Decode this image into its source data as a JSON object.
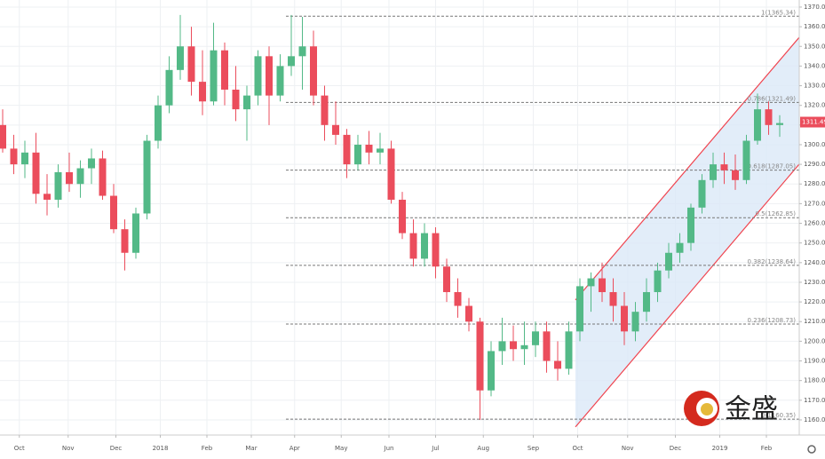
{
  "chart_data": {
    "type": "candlestick",
    "xlim": [
      -0.24,
      71.76
    ],
    "ylim": [
      1152.3,
      1373.6
    ],
    "yticks": [
      {
        "value": 1160,
        "label": "1160.00"
      },
      {
        "value": 1170,
        "label": "1170.00"
      },
      {
        "value": 1180,
        "label": "1180.00"
      },
      {
        "value": 1190,
        "label": "1190.00"
      },
      {
        "value": 1200,
        "label": "1200.00"
      },
      {
        "value": 1210,
        "label": "1210.00"
      },
      {
        "value": 1220,
        "label": "1220.00"
      },
      {
        "value": 1230,
        "label": "1230.00"
      },
      {
        "value": 1240,
        "label": "1240.00"
      },
      {
        "value": 1250,
        "label": "1250.00"
      },
      {
        "value": 1260,
        "label": "1260.00"
      },
      {
        "value": 1270,
        "label": "1270.00"
      },
      {
        "value": 1280,
        "label": "1280.00"
      },
      {
        "value": 1290,
        "label": "1290.00"
      },
      {
        "value": 1300,
        "label": "1300.00"
      },
      {
        "value": 1310,
        "label": "1310.00"
      },
      {
        "value": 1320,
        "label": "1320.00"
      },
      {
        "value": 1330,
        "label": "1330.00"
      },
      {
        "value": 1340,
        "label": "1340.00"
      },
      {
        "value": 1350,
        "label": "1350.00"
      },
      {
        "value": 1360,
        "label": "1360.00"
      },
      {
        "value": 1370,
        "label": "1370.00"
      }
    ],
    "xticks": [
      {
        "value": 1.5,
        "label": "Oct"
      },
      {
        "value": 5.9,
        "label": "Nov"
      },
      {
        "value": 10.2,
        "label": "Dec"
      },
      {
        "value": 14.2,
        "label": "2018"
      },
      {
        "value": 18.4,
        "label": "Feb"
      },
      {
        "value": 22.4,
        "label": "Mar"
      },
      {
        "value": 26.3,
        "label": "Apr"
      },
      {
        "value": 30.5,
        "label": "May"
      },
      {
        "value": 34.8,
        "label": "Jun"
      },
      {
        "value": 39,
        "label": "Jul"
      },
      {
        "value": 43.3,
        "label": "Aug"
      },
      {
        "value": 47.8,
        "label": "Sep"
      },
      {
        "value": 51.8,
        "label": "Oct"
      },
      {
        "value": 56.3,
        "label": "Nov"
      },
      {
        "value": 60.6,
        "label": "Dec"
      },
      {
        "value": 64.6,
        "label": "2019"
      },
      {
        "value": 68.8,
        "label": "Feb"
      }
    ],
    "grid": true,
    "up_color": "#53b987",
    "down_color": "#eb4d5c",
    "ohlc": [
      [
        1310,
        1318,
        1296,
        1298
      ],
      [
        1298,
        1305,
        1285,
        1290
      ],
      [
        1290,
        1302,
        1283,
        1296
      ],
      [
        1296,
        1306,
        1270,
        1275
      ],
      [
        1275,
        1285,
        1264,
        1272
      ],
      [
        1272,
        1290,
        1268,
        1286
      ],
      [
        1286,
        1296,
        1276,
        1280
      ],
      [
        1280,
        1292,
        1273,
        1288
      ],
      [
        1288,
        1298,
        1280,
        1293
      ],
      [
        1293,
        1297,
        1272,
        1274
      ],
      [
        1274,
        1280,
        1255,
        1257
      ],
      [
        1257,
        1262,
        1236,
        1245
      ],
      [
        1245,
        1268,
        1242,
        1265
      ],
      [
        1265,
        1305,
        1262,
        1302
      ],
      [
        1302,
        1325,
        1298,
        1320
      ],
      [
        1320,
        1345,
        1316,
        1338
      ],
      [
        1338,
        1366,
        1333,
        1350
      ],
      [
        1350,
        1360,
        1325,
        1332
      ],
      [
        1332,
        1348,
        1315,
        1322
      ],
      [
        1322,
        1362,
        1320,
        1348
      ],
      [
        1348,
        1352,
        1320,
        1328
      ],
      [
        1328,
        1340,
        1312,
        1318
      ],
      [
        1318,
        1330,
        1302,
        1325
      ],
      [
        1325,
        1348,
        1320,
        1345
      ],
      [
        1345,
        1350,
        1310,
        1325
      ],
      [
        1325,
        1346,
        1322,
        1340
      ],
      [
        1340,
        1366,
        1335,
        1345
      ],
      [
        1345,
        1365,
        1328,
        1350
      ],
      [
        1350,
        1358,
        1320,
        1325
      ],
      [
        1325,
        1330,
        1302,
        1310
      ],
      [
        1310,
        1322,
        1300,
        1305
      ],
      [
        1305,
        1308,
        1283,
        1290
      ],
      [
        1290,
        1305,
        1287,
        1300
      ],
      [
        1300,
        1307,
        1290,
        1296
      ],
      [
        1296,
        1306,
        1290,
        1298
      ],
      [
        1298,
        1302,
        1270,
        1272
      ],
      [
        1272,
        1276,
        1252,
        1255
      ],
      [
        1255,
        1262,
        1238,
        1242
      ],
      [
        1242,
        1260,
        1238,
        1255
      ],
      [
        1255,
        1258,
        1232,
        1238
      ],
      [
        1238,
        1242,
        1220,
        1225
      ],
      [
        1225,
        1232,
        1212,
        1218
      ],
      [
        1218,
        1222,
        1205,
        1210
      ],
      [
        1210,
        1212,
        1160,
        1175
      ],
      [
        1175,
        1200,
        1172,
        1195
      ],
      [
        1195,
        1212,
        1188,
        1200
      ],
      [
        1200,
        1208,
        1190,
        1196
      ],
      [
        1196,
        1210,
        1188,
        1198
      ],
      [
        1198,
        1210,
        1192,
        1205
      ],
      [
        1205,
        1210,
        1184,
        1190
      ],
      [
        1190,
        1200,
        1180,
        1186
      ],
      [
        1186,
        1210,
        1183,
        1205
      ],
      [
        1205,
        1232,
        1200,
        1228
      ],
      [
        1228,
        1235,
        1215,
        1232
      ],
      [
        1232,
        1240,
        1220,
        1225
      ],
      [
        1225,
        1232,
        1210,
        1218
      ],
      [
        1218,
        1225,
        1198,
        1205
      ],
      [
        1205,
        1220,
        1200,
        1215
      ],
      [
        1215,
        1232,
        1210,
        1225
      ],
      [
        1225,
        1240,
        1220,
        1236
      ],
      [
        1236,
        1250,
        1232,
        1245
      ],
      [
        1245,
        1255,
        1240,
        1250
      ],
      [
        1250,
        1270,
        1246,
        1268
      ],
      [
        1268,
        1285,
        1265,
        1282
      ],
      [
        1282,
        1296,
        1278,
        1290
      ],
      [
        1290,
        1296,
        1280,
        1287
      ],
      [
        1287,
        1295,
        1277,
        1282
      ],
      [
        1282,
        1305,
        1280,
        1302
      ],
      [
        1302,
        1326,
        1300,
        1318
      ],
      [
        1318,
        1322,
        1305,
        1310
      ],
      [
        1310,
        1315,
        1304,
        1311
      ]
    ],
    "fib_levels": [
      {
        "value": 1365.34,
        "label": "1(1365.34)"
      },
      {
        "value": 1321.49,
        "label": "0.786(1321.49)"
      },
      {
        "value": 1287.05,
        "label": "0.618(1287.05)"
      },
      {
        "value": 1262.85,
        "label": "0.5(1262.85)"
      },
      {
        "value": 1238.64,
        "label": "0.382(1238.64)"
      },
      {
        "value": 1208.73,
        "label": "0.236(1208.73)"
      },
      {
        "value": 1160.35,
        "label": "0(1160.35)"
      }
    ],
    "channel": {
      "x": [
        51.6,
        71.76
      ],
      "upper": [
        1221,
        1354.6
      ],
      "lower": [
        1156.4,
        1290.1
      ],
      "color": "#f0444f",
      "fill": "#dbe8f8"
    },
    "last_price": 1311.49,
    "watermark": "金盛"
  }
}
